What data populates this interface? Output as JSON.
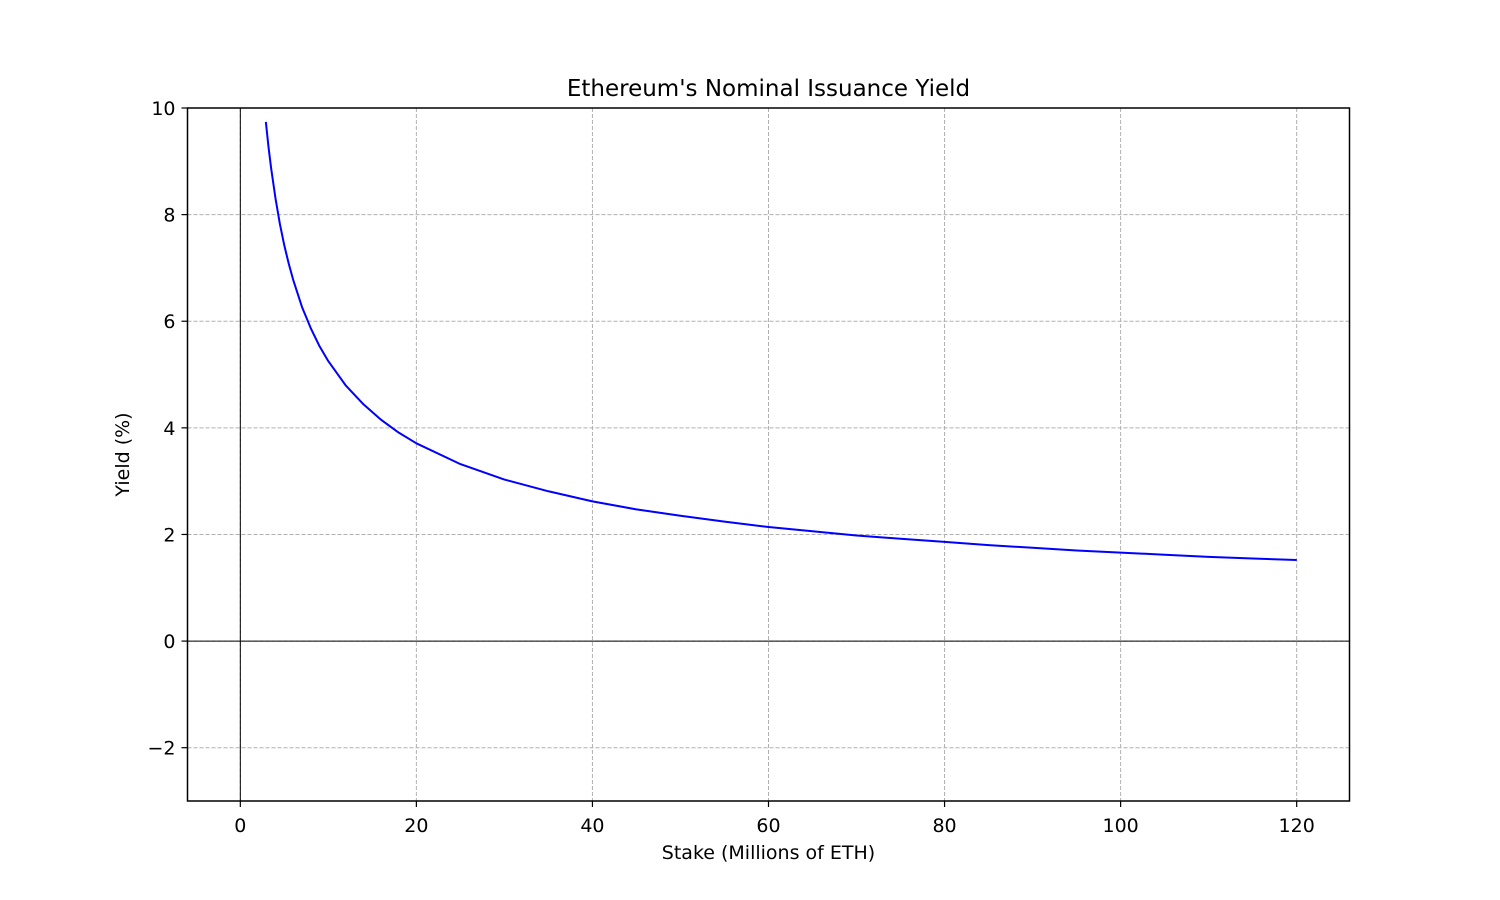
{
  "chart_data": {
    "type": "line",
    "title": "Ethereum's Nominal Issuance Yield",
    "xlabel": "Stake (Millions of ETH)",
    "ylabel": "Yield (%)",
    "xlim": [
      -6,
      126
    ],
    "ylim": [
      -3,
      10
    ],
    "grid": true,
    "x_ticks": [
      0,
      20,
      40,
      60,
      80,
      100,
      120
    ],
    "y_ticks": [
      -2,
      0,
      2,
      4,
      6,
      8,
      10
    ],
    "x_tick_labels": [
      "0",
      "20",
      "40",
      "60",
      "80",
      "100",
      "120"
    ],
    "y_tick_labels": [
      "−2",
      "0",
      "2",
      "4",
      "6",
      "8",
      "10"
    ],
    "reference_lines": {
      "x": 0,
      "y": 0
    },
    "series": [
      {
        "color": "#0000ff",
        "x": [
          2.9,
          3.2,
          3.5,
          4,
          4.5,
          5,
          5.5,
          6,
          7,
          8,
          9,
          10,
          12,
          14,
          16,
          18,
          20,
          25,
          30,
          35,
          40,
          45,
          50,
          55,
          60,
          65,
          70,
          75,
          80,
          85,
          90,
          95,
          100,
          105,
          110,
          115,
          120
        ],
        "y": [
          9.74,
          9.27,
          8.87,
          8.3,
          7.82,
          7.42,
          7.08,
          6.78,
          6.27,
          5.87,
          5.53,
          5.25,
          4.79,
          4.44,
          4.15,
          3.91,
          3.71,
          3.32,
          3.03,
          2.81,
          2.62,
          2.47,
          2.35,
          2.24,
          2.14,
          2.06,
          1.98,
          1.92,
          1.86,
          1.8,
          1.75,
          1.7,
          1.66,
          1.62,
          1.58,
          1.55,
          1.52
        ]
      }
    ]
  }
}
